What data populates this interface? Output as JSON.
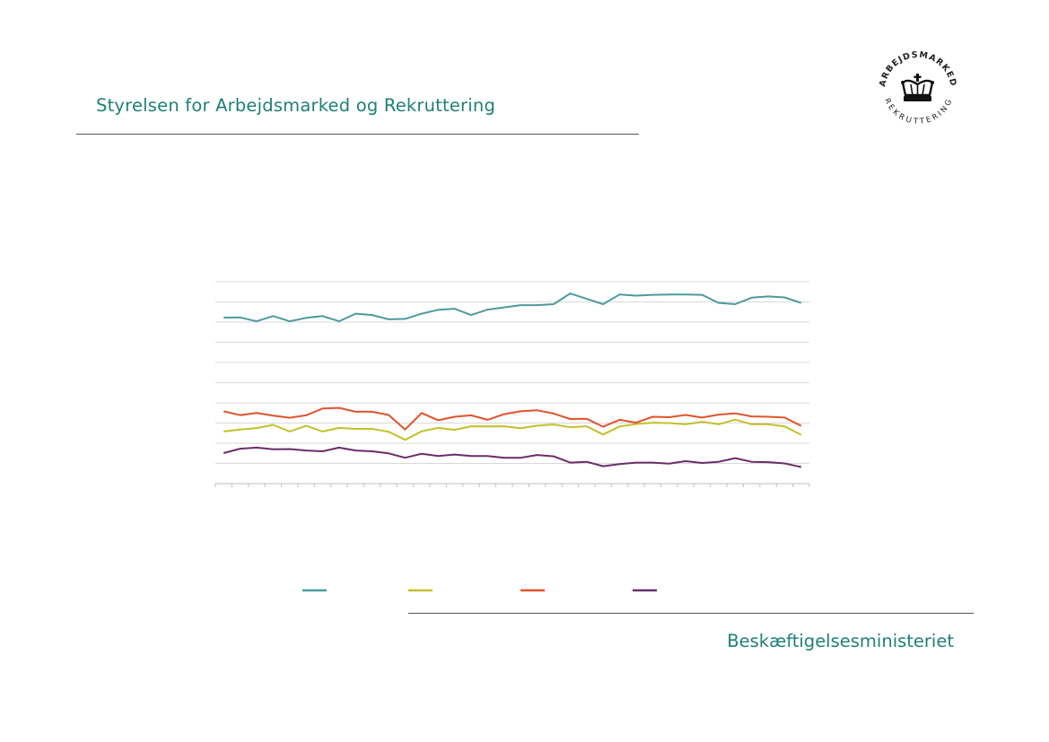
{
  "header": {
    "title": "Styrelsen for Arbejdsmarked og Rekruttering"
  },
  "footer": {
    "title": "Beskæftigelsesministeriet"
  },
  "logo": {
    "upper_text": "ARBEJDSMARKED",
    "lower_text": "REKRUTTERING",
    "icon": "royal-crown-icon"
  },
  "colors": {
    "brand_teal": "#1f8078",
    "series_teal": "#4d9aa0",
    "series_yellow": "#c4c02c",
    "series_orange": "#e0532c",
    "series_purple": "#6a2d6a",
    "grid": "#d9d9d9"
  },
  "chart_data": {
    "type": "line",
    "title": "",
    "xlabel": "",
    "ylabel": "",
    "ylim": [
      0,
      10
    ],
    "grid": true,
    "legend_placement": "bottom",
    "x": [
      1,
      2,
      3,
      4,
      5,
      6,
      7,
      8,
      9,
      10,
      11,
      12,
      13,
      14,
      15,
      16,
      17,
      18,
      19,
      20,
      21,
      22,
      23,
      24,
      25,
      26,
      27,
      28,
      29,
      30,
      31,
      32,
      33,
      34,
      35,
      36
    ],
    "series": [
      {
        "color": "#4d9aa0",
        "values": [
          8.22,
          8.23,
          8.04,
          8.3,
          8.04,
          8.21,
          8.3,
          8.04,
          8.42,
          8.35,
          8.14,
          8.16,
          8.42,
          8.61,
          8.66,
          8.35,
          8.62,
          8.73,
          8.84,
          8.84,
          8.89,
          9.42,
          9.15,
          8.89,
          9.37,
          9.31,
          9.35,
          9.37,
          9.37,
          9.35,
          8.95,
          8.89,
          9.21,
          9.27,
          9.22,
          8.95
        ]
      },
      {
        "color": "#c4c02c",
        "values": [
          2.58,
          2.68,
          2.75,
          2.91,
          2.58,
          2.86,
          2.58,
          2.76,
          2.71,
          2.71,
          2.57,
          2.17,
          2.59,
          2.76,
          2.66,
          2.84,
          2.83,
          2.84,
          2.74,
          2.87,
          2.93,
          2.79,
          2.84,
          2.43,
          2.83,
          2.95,
          3.02,
          3.0,
          2.94,
          3.06,
          2.94,
          3.17,
          2.94,
          2.94,
          2.83,
          2.42
        ]
      },
      {
        "color": "#e0532c",
        "values": [
          3.58,
          3.39,
          3.5,
          3.37,
          3.26,
          3.38,
          3.72,
          3.75,
          3.56,
          3.56,
          3.4,
          2.68,
          3.5,
          3.14,
          3.31,
          3.38,
          3.16,
          3.44,
          3.58,
          3.63,
          3.47,
          3.2,
          3.21,
          2.82,
          3.16,
          3.02,
          3.31,
          3.29,
          3.4,
          3.27,
          3.42,
          3.48,
          3.33,
          3.31,
          3.27,
          2.86
        ]
      },
      {
        "color": "#6a2d6a",
        "values": [
          1.51,
          1.73,
          1.78,
          1.7,
          1.71,
          1.64,
          1.6,
          1.78,
          1.64,
          1.6,
          1.5,
          1.28,
          1.48,
          1.37,
          1.44,
          1.37,
          1.37,
          1.28,
          1.28,
          1.42,
          1.35,
          1.04,
          1.08,
          0.86,
          0.97,
          1.04,
          1.04,
          0.99,
          1.11,
          1.02,
          1.08,
          1.26,
          1.08,
          1.06,
          1.0,
          0.82
        ]
      }
    ]
  }
}
